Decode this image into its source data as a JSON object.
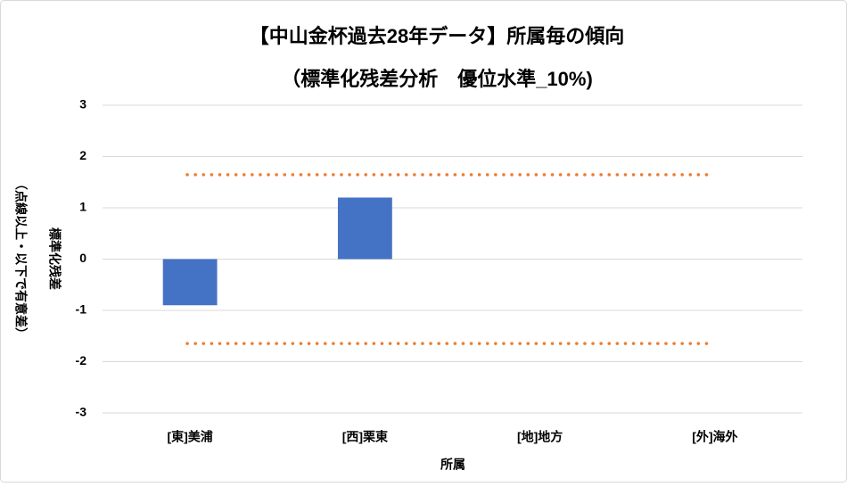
{
  "chart_data": {
    "type": "bar",
    "title": "【中山金杯過去28年データ】所属毎の傾向",
    "subtitle": "（標準化残差分析　優位水準_10%)",
    "x_label": "所属",
    "y_label": "標準化残差",
    "y_label_note": "（点線以上・以下で有意差）",
    "categories": [
      "[東]美浦",
      "[西]栗東",
      "[地]地方",
      "[外]海外"
    ],
    "values": [
      -0.9,
      1.2,
      0,
      0
    ],
    "color": "#4472c4",
    "reference_lines": [
      1.645,
      -1.645
    ],
    "reference_color": "#ed7d31",
    "ylim": [
      -3,
      3
    ],
    "yticks": [
      -3,
      -2,
      -1,
      0,
      1,
      2,
      3
    ],
    "grid": true
  }
}
